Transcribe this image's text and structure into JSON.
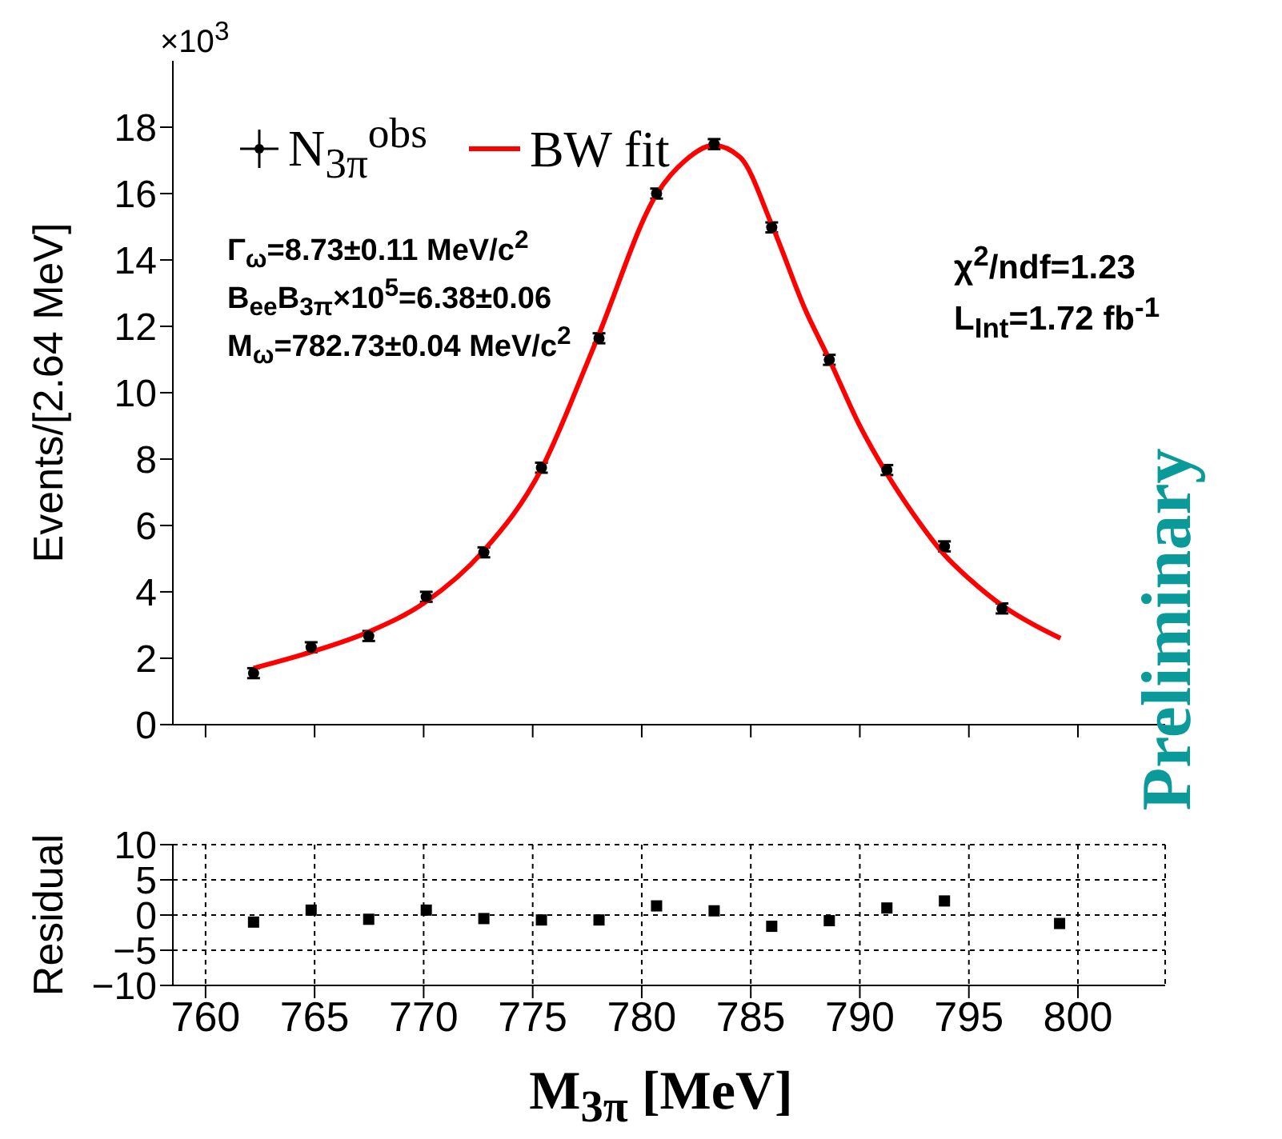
{
  "chart_data": [
    {
      "type": "scatter",
      "ylabel": "Events/[2.64 MeV]",
      "annotations": [
        "×10$^{3}$",
        "Γ$_{ω}$=8.73±0.11 MeV/c$^{2}$",
        "B$_{ee}$B$_{3π}$×10$^{5}$=6.38±0.06",
        "M$_{ω}$=782.73±0.04 MeV/c$^{2}$",
        "χ$^{2}$/ndf=1.23",
        "L$_{Int}$=1.72 fb$^{-1}$",
        "Preliminary"
      ],
      "x": [
        762.2,
        764.84,
        767.48,
        770.12,
        772.76,
        775.4,
        778.04,
        780.68,
        783.32,
        785.96,
        788.6,
        791.24,
        793.88,
        796.52
      ],
      "series": [
        {
          "name": "N$_{3π}$$^{obs}$",
          "type": "scatter",
          "color": "#000000",
          "marker": "circle",
          "values": [
            1.55,
            2.33,
            2.67,
            3.85,
            5.19,
            7.74,
            11.64,
            16.0,
            17.49,
            14.98,
            10.99,
            7.67,
            5.37,
            3.5
          ],
          "errors": [
            0.15,
            0.15,
            0.15,
            0.15,
            0.15,
            0.15,
            0.15,
            0.15,
            0.15,
            0.15,
            0.15,
            0.15,
            0.15,
            0.15
          ]
        },
        {
          "name": "BW fit",
          "type": "line",
          "color": "#ff0000",
          "x": [
            762.2,
            764.9,
            767.5,
            770.1,
            772.7,
            775.4,
            777.5,
            778.0,
            780.7,
            782.0,
            783.3,
            784.5,
            786.0,
            787.5,
            788.6,
            790.0,
            791.2,
            792.5,
            793.9,
            795.0,
            796.5,
            798.0,
            799.2
          ],
          "values": [
            1.7,
            2.2,
            2.8,
            3.7,
            5.2,
            7.7,
            10.9,
            11.7,
            16.0,
            17.0,
            17.45,
            17.1,
            15.0,
            12.5,
            11.0,
            9.0,
            7.6,
            6.3,
            5.1,
            4.4,
            3.6,
            3.0,
            2.6
          ]
        }
      ],
      "legend": "top left",
      "tick_labels": "y",
      "xlim": [
        758.5,
        804
      ],
      "xticks": [
        {
          "value": 760,
          "label": null
        },
        {
          "value": 765,
          "label": null
        },
        {
          "value": 770,
          "label": null
        },
        {
          "value": 775,
          "label": null
        },
        {
          "value": 780,
          "label": null
        },
        {
          "value": 785,
          "label": null
        },
        {
          "value": 790,
          "label": null
        },
        {
          "value": 795,
          "label": null
        },
        {
          "value": 800,
          "label": null
        }
      ],
      "ylim": [
        0,
        20
      ],
      "yticks": [
        0,
        2,
        4,
        6,
        8,
        10,
        12,
        14,
        16,
        18
      ]
    },
    {
      "type": "scatter",
      "xlabel": "M$_{3π}$ [MeV]",
      "ylabel": "Residual",
      "x": [
        762.2,
        764.84,
        767.48,
        770.12,
        772.76,
        775.4,
        778.04,
        780.68,
        783.32,
        785.96,
        788.6,
        791.24,
        793.88,
        796.52,
        799.16
      ],
      "values": [
        -1.0,
        0.7,
        -0.6,
        0.7,
        -0.5,
        -0.7,
        -0.7,
        1.3,
        0.6,
        -1.6,
        -0.8,
        1.0,
        2.0,
        null,
        -1.2
      ],
      "color": "#000000",
      "marker": "square",
      "grid": true,
      "xlim": [
        758.5,
        804
      ],
      "xticks": [
        760,
        765,
        770,
        775,
        780,
        785,
        790,
        795,
        800
      ],
      "ylim": [
        -10,
        10
      ],
      "yticks": [
        {
          "value": -10,
          "label": "−10"
        },
        {
          "value": -5,
          "label": "−5"
        },
        0,
        5,
        10
      ]
    }
  ]
}
